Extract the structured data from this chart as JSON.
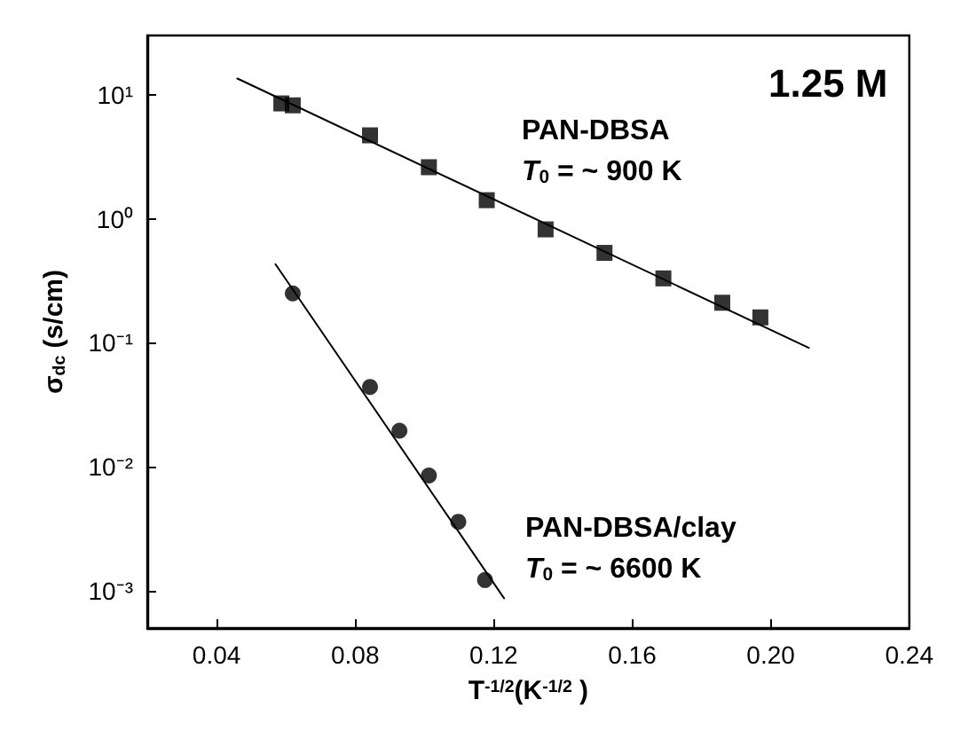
{
  "chart_data": {
    "type": "scatter",
    "xlabel": "T$^{-1/2}$(K$^{-1/2}$ )",
    "ylabel": "σ$_{dc}$ (s/cm)",
    "annotations": [
      "1.25 M",
      "T$_{0}$ = ~ 900 K",
      "T$_{0}$ = ~ 6600 K"
    ],
    "xlim": [
      0.02,
      0.24
    ],
    "xticks": [
      0.04,
      0.08,
      0.12,
      0.16,
      {
        "value": 0.2,
        "label": "0.20"
      },
      0.24
    ],
    "ylim": [
      0.0005,
      30
    ],
    "log": "y",
    "yticks": [
      {
        "value": 0.001,
        "label": "10⁻³"
      },
      {
        "value": 0.01,
        "label": "10⁻²"
      },
      {
        "value": 0.1,
        "label": "10⁻¹"
      },
      {
        "value": 1,
        "label": "10⁰"
      },
      {
        "value": 10,
        "label": "10¹"
      }
    ],
    "grid": false,
    "legend": false,
    "series": [
      {
        "name": "PAN-DBSA",
        "color": "#000000",
        "marker": "square",
        "x": [
          0.0587,
          0.062,
          0.0843,
          0.1013,
          0.118,
          0.135,
          0.152,
          0.169,
          0.186,
          0.197
        ],
        "values": [
          8.5,
          8.2,
          4.7,
          2.6,
          1.41,
          0.82,
          0.53,
          0.33,
          0.21,
          0.16
        ]
      },
      {
        "name": "PAN-DBSA/clay",
        "color": "#000000",
        "marker": "circle",
        "x": [
          0.062,
          0.0843,
          0.0928,
          0.1013,
          0.1098,
          0.1175
        ],
        "values": [
          0.25,
          0.044,
          0.0195,
          0.0085,
          0.0036,
          0.00122
        ]
      },
      {
        "type": "line",
        "color": "#000000",
        "marker": "none",
        "x": [
          0.046,
          0.211
        ],
        "values": [
          13.5,
          0.091
        ]
      },
      {
        "type": "line",
        "color": "#000000",
        "marker": "none",
        "x": [
          0.057,
          0.123
        ],
        "values": [
          0.43,
          0.00087
        ]
      }
    ]
  }
}
